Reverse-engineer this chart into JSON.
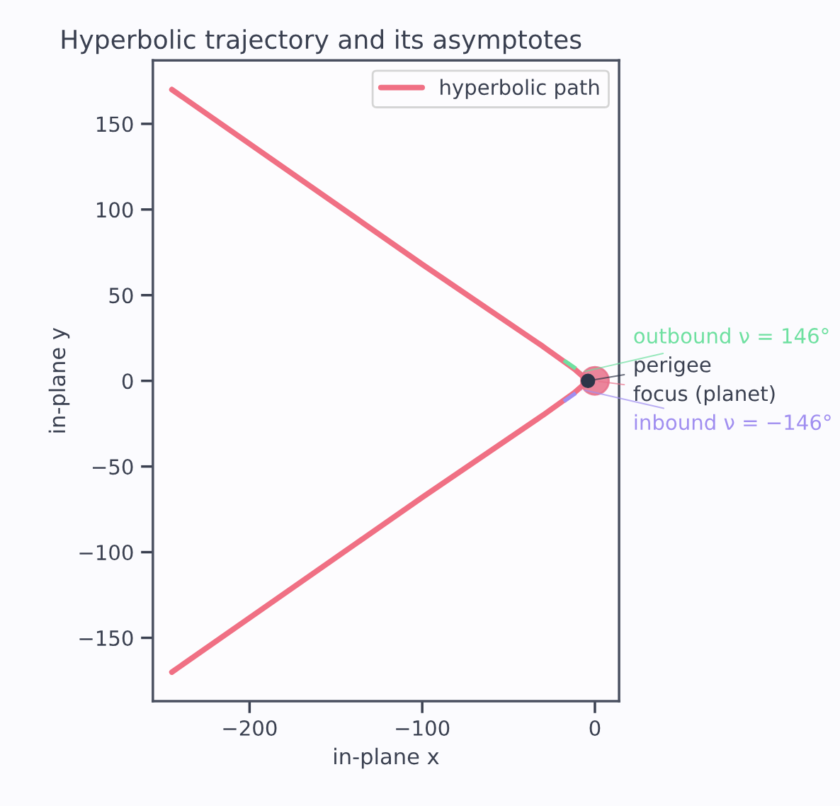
{
  "chart_data": {
    "type": "line",
    "title": "Hyperbolic trajectory and its asymptotes",
    "xlabel": "in-plane x",
    "ylabel": "in-plane y",
    "xlim": [
      -256,
      14
    ],
    "ylim": [
      -187,
      187
    ],
    "xticks": [
      -200,
      -100,
      0
    ],
    "yticks": [
      -150,
      -100,
      -50,
      0,
      50,
      100,
      150
    ],
    "legend": "top right",
    "grid": false,
    "series": [
      {
        "name": "hyperbolic path",
        "color": "#f07084",
        "x": [
          -245,
          -100,
          -30,
          -12,
          -4,
          -12,
          -30,
          -100,
          -245
        ],
        "values": [
          170,
          68,
          20,
          7,
          0,
          -7,
          -20,
          -68,
          -170
        ]
      },
      {
        "name": "outbound ν = 146°",
        "type": "line",
        "line_style": "dashed",
        "color": "#6ee0a0",
        "x": [
          -18,
          -8
        ],
        "values": [
          12,
          5
        ]
      },
      {
        "name": "perigee",
        "type": "scatter",
        "marker": "circle",
        "color": "#2e3548",
        "x": [
          -4
        ],
        "values": [
          0
        ]
      },
      {
        "name": "focus (planet)",
        "type": "scatter",
        "marker": "circle",
        "color": "#e8708a",
        "x": [
          0
        ],
        "values": [
          0
        ]
      },
      {
        "name": "inbound ν = −146°",
        "type": "line",
        "line_style": "dashed",
        "color": "#a08ef0",
        "x": [
          -18,
          -8
        ],
        "values": [
          -12,
          -5
        ]
      }
    ]
  }
}
